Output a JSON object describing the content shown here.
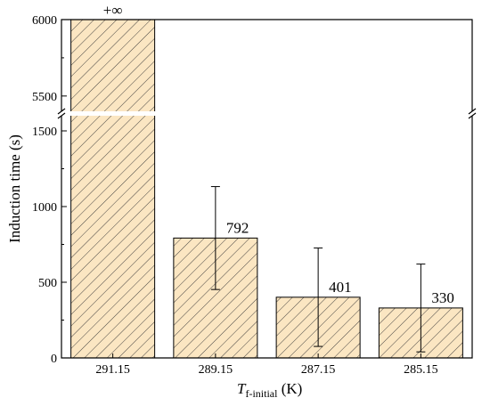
{
  "chart_data": {
    "type": "bar",
    "ylabel": "Induction time (s)",
    "xlabel_main": "T",
    "xlabel_sub": "f-initial",
    "xlabel_unit": " (K)",
    "categories": [
      "291.15",
      "289.15",
      "287.15",
      "285.15"
    ],
    "values": [
      null,
      792,
      401,
      330
    ],
    "errors": [
      0,
      340,
      325,
      290
    ],
    "data_labels": [
      "+∞",
      "792",
      "401",
      "330"
    ],
    "infinite": [
      true,
      false,
      false,
      false
    ],
    "y_broken_axis": true,
    "lower_ylim": [
      0,
      1600
    ],
    "lower_yticks": [
      0,
      500,
      1000,
      1500
    ],
    "upper_ylim": [
      5400,
      6000
    ],
    "upper_yticks": [
      5500,
      6000
    ],
    "bar_fill": "#fbe6c2",
    "hatch": "diagonal",
    "grid": false
  }
}
